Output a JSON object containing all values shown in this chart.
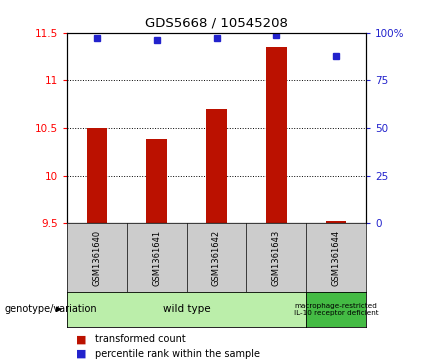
{
  "title": "GDS5668 / 10545208",
  "samples": [
    "GSM1361640",
    "GSM1361641",
    "GSM1361642",
    "GSM1361643",
    "GSM1361644"
  ],
  "transformed_counts": [
    10.5,
    10.38,
    10.7,
    11.35,
    9.52
  ],
  "percentile_ranks": [
    97,
    96,
    97,
    99,
    88
  ],
  "ylim_left": [
    9.5,
    11.5
  ],
  "yticks_left": [
    9.5,
    10.0,
    10.5,
    11.0,
    11.5
  ],
  "yticks_right": [
    0,
    25,
    50,
    75,
    100
  ],
  "bar_color": "#bb1100",
  "dot_color": "#2222cc",
  "bar_bottom": 9.5,
  "genotype_groups": [
    {
      "label": "wild type",
      "n_samples": 4,
      "color": "#bbeeaa"
    },
    {
      "label": "macrophage-restricted\nIL-10 receptor deficient",
      "n_samples": 1,
      "color": "#44bb44"
    }
  ],
  "legend_bar_label": "transformed count",
  "legend_dot_label": "percentile rank within the sample",
  "genotype_label": "genotype/variation",
  "tick_gridlines": [
    10.0,
    10.5,
    11.0
  ],
  "background_color": "#ffffff",
  "sample_box_color": "#cccccc",
  "title_fontsize": 9.5
}
